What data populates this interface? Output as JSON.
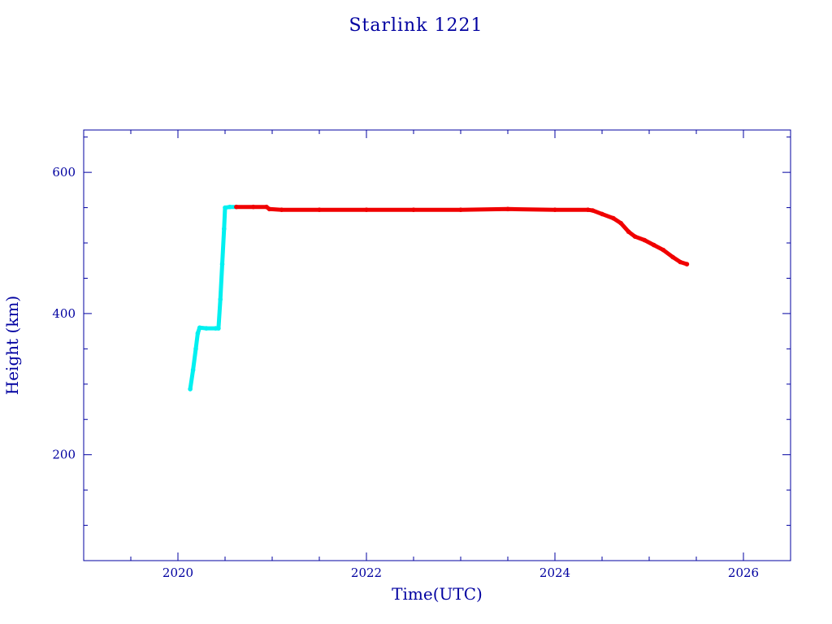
{
  "chart_data": {
    "type": "line",
    "title": "Starlink 1221",
    "xlabel": "Time(UTC)",
    "ylabel": "Height (km)",
    "xlim": [
      2019.0,
      2026.5
    ],
    "ylim": [
      50,
      660
    ],
    "x_ticks": [
      2020,
      2022,
      2024,
      2026
    ],
    "x_tick_labels": [
      "2020",
      "2022",
      "2024",
      "2026"
    ],
    "y_ticks": [
      200,
      400,
      600
    ],
    "y_tick_labels": [
      "200",
      "400",
      "600"
    ],
    "x_minor_step": 0.5,
    "y_minor_step": 50,
    "grid": false,
    "legend": "none",
    "series": [
      {
        "color": "#00f0f0",
        "points": [
          [
            2020.13,
            293
          ],
          [
            2020.16,
            320
          ],
          [
            2020.19,
            350
          ],
          [
            2020.21,
            372
          ],
          [
            2020.23,
            380
          ],
          [
            2020.3,
            379
          ],
          [
            2020.4,
            379
          ],
          [
            2020.43,
            379
          ],
          [
            2020.45,
            420
          ],
          [
            2020.47,
            470
          ],
          [
            2020.49,
            520
          ],
          [
            2020.5,
            550
          ],
          [
            2020.55,
            551
          ],
          [
            2020.62,
            551
          ]
        ]
      },
      {
        "color": "#f00000",
        "points": [
          [
            2020.62,
            551
          ],
          [
            2020.8,
            551
          ],
          [
            2020.94,
            551
          ],
          [
            2020.97,
            548
          ],
          [
            2021.1,
            547
          ],
          [
            2021.5,
            547
          ],
          [
            2022.0,
            547
          ],
          [
            2022.5,
            547
          ],
          [
            2023.0,
            547
          ],
          [
            2023.5,
            548
          ],
          [
            2024.0,
            547
          ],
          [
            2024.35,
            547
          ],
          [
            2024.4,
            546
          ],
          [
            2024.5,
            541
          ],
          [
            2024.62,
            535
          ],
          [
            2024.7,
            528
          ],
          [
            2024.78,
            516
          ],
          [
            2024.85,
            509
          ],
          [
            2024.95,
            504
          ],
          [
            2025.05,
            497
          ],
          [
            2025.15,
            490
          ],
          [
            2025.25,
            480
          ],
          [
            2025.33,
            473
          ],
          [
            2025.4,
            470
          ]
        ]
      }
    ]
  }
}
